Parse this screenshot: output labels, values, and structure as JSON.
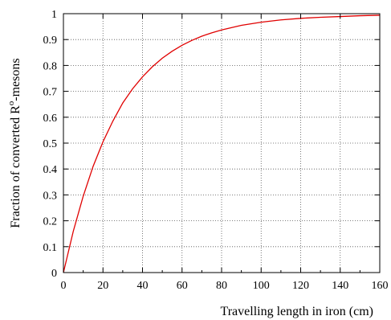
{
  "chart_data": {
    "type": "line",
    "title": "",
    "xlabel": "Travelling length in iron (cm)",
    "ylabel_main": "Fraction of converted R",
    "ylabel_superscript": "o",
    "ylabel_suffix": "-mesons",
    "xlim": [
      0,
      160
    ],
    "ylim": [
      0,
      1
    ],
    "xticks": [
      "0",
      "20",
      "40",
      "60",
      "80",
      "100",
      "120",
      "140",
      "160"
    ],
    "yticks": [
      "0",
      "0.1",
      "0.2",
      "0.3",
      "0.4",
      "0.5",
      "0.6",
      "0.7",
      "0.8",
      "0.9",
      "1"
    ],
    "grid": true,
    "line_color": "#e00000",
    "series": [
      {
        "x": [
          0,
          5,
          10,
          15,
          20,
          25,
          30,
          35,
          40,
          45,
          50,
          55,
          60,
          65,
          70,
          75,
          80,
          90,
          100,
          110,
          120,
          130,
          140,
          150,
          160
        ],
        "y": [
          0,
          0.16,
          0.295,
          0.41,
          0.505,
          0.585,
          0.655,
          0.71,
          0.756,
          0.795,
          0.828,
          0.855,
          0.878,
          0.897,
          0.913,
          0.926,
          0.937,
          0.955,
          0.967,
          0.976,
          0.982,
          0.986,
          0.989,
          0.992,
          0.994
        ]
      }
    ]
  }
}
